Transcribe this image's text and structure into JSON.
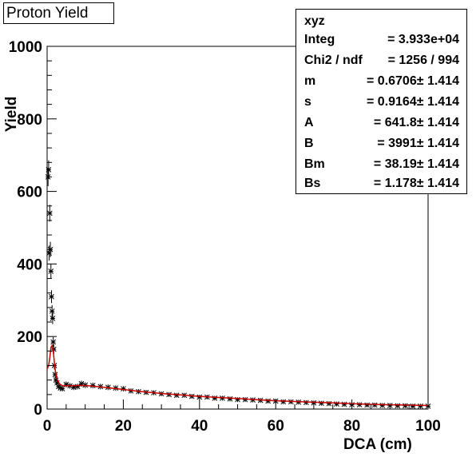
{
  "title": "Proton Yield",
  "stats": {
    "title": "xyz",
    "rows": [
      {
        "name": "Integ",
        "value": "= 3.933e+04"
      },
      {
        "name": "Chi2 / ndf",
        "value": "=  1256 / 994"
      },
      {
        "name": "m",
        "value": "= 0.6706± 1.414"
      },
      {
        "name": "s",
        "value": "= 0.9164± 1.414"
      },
      {
        "name": "A",
        "value": "= 641.8± 1.414"
      },
      {
        "name": "B",
        "value": "=  3991± 1.414"
      },
      {
        "name": "Bm",
        "value": "= 38.19± 1.414"
      },
      {
        "name": "Bs",
        "value": "= 1.178± 1.414"
      }
    ]
  },
  "colors": {
    "axis": "#000000",
    "data": "#000000",
    "fit": "#cc0000"
  },
  "chart_data": {
    "type": "scatter",
    "title": "Proton Yield",
    "xlabel": "DCA (cm)",
    "ylabel": "Yield",
    "xlim": [
      0,
      100
    ],
    "ylim": [
      0,
      1000
    ],
    "x_ticks": [
      0,
      20,
      40,
      60,
      80,
      100
    ],
    "y_ticks": [
      0,
      200,
      400,
      600,
      800,
      1000
    ],
    "grid": false,
    "marker": "star",
    "series": [
      {
        "type": "scatter",
        "x": [
          0.25,
          0.4,
          0.55,
          0.7,
          0.85,
          1.0,
          1.15,
          1.3,
          1.45,
          1.6,
          1.75,
          1.9,
          2.1,
          2.3,
          2.6,
          3.0,
          3.5,
          4,
          5,
          6,
          7,
          8,
          9,
          10,
          12,
          14,
          16,
          18,
          20,
          22,
          24,
          26,
          28,
          30,
          32,
          34,
          36,
          38,
          40,
          42,
          44,
          46,
          48,
          50,
          52,
          54,
          56,
          58,
          60,
          62,
          64,
          66,
          68,
          70,
          72,
          74,
          76,
          78,
          80,
          82,
          84,
          86,
          88,
          90,
          92,
          94,
          96,
          98,
          100
        ],
        "y": [
          640,
          660,
          430,
          540,
          440,
          380,
          310,
          270,
          250,
          185,
          165,
          120,
          95,
          80,
          72,
          62,
          58,
          56,
          68,
          64,
          60,
          62,
          70,
          66,
          65,
          62,
          60,
          58,
          56,
          50,
          48,
          46,
          45,
          42,
          40,
          38,
          38,
          35,
          33,
          33,
          30,
          30,
          28,
          26,
          26,
          25,
          24,
          22,
          22,
          20,
          20,
          19,
          18,
          17,
          16,
          15,
          14,
          13,
          12,
          12,
          11,
          11,
          10,
          10,
          9,
          9,
          8,
          8,
          8
        ]
      },
      {
        "type": "line",
        "name": "",
        "x": [
          0,
          0.4,
          0.7,
          1.0,
          1.3,
          1.6,
          1.8,
          2.0,
          2.3,
          2.7,
          3.2,
          4,
          5,
          6,
          8,
          10,
          12,
          15,
          20,
          25,
          30,
          35,
          40,
          45,
          50,
          55,
          60,
          65,
          70,
          75,
          80,
          85,
          90,
          95,
          100
        ],
        "y": [
          110,
          120,
          140,
          170,
          175,
          160,
          140,
          118,
          95,
          80,
          70,
          64,
          64,
          64,
          65,
          65,
          63,
          60,
          54,
          48,
          43,
          39,
          35,
          32,
          29,
          26,
          23,
          21,
          19,
          17,
          15,
          13,
          12,
          11,
          10
        ]
      }
    ]
  }
}
